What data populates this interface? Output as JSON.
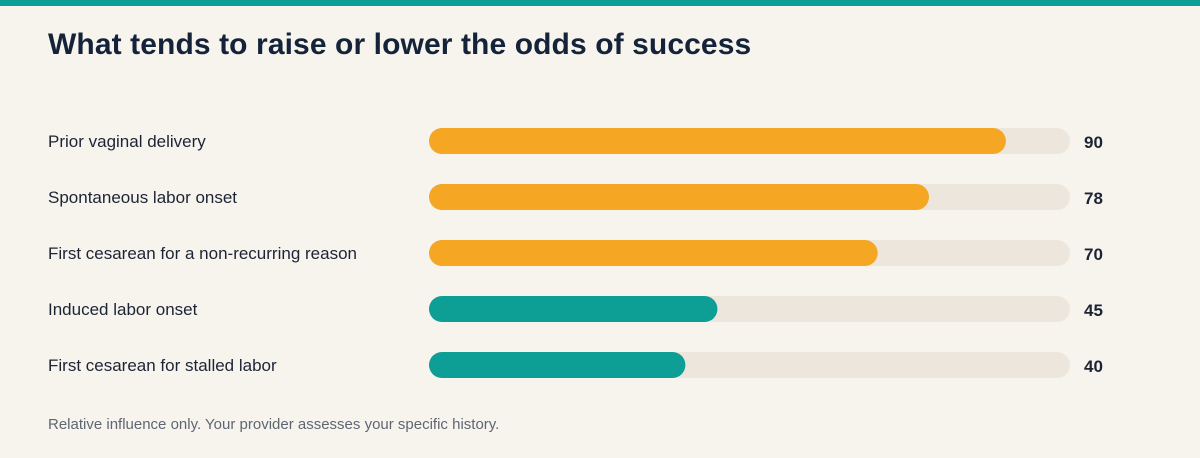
{
  "colors": {
    "background": "#f7f4ee",
    "stripe": "#0d9e95",
    "track": "#ede6dd",
    "raise": "#f5a623",
    "lower": "#0d9e95"
  },
  "title": "What tends to raise or lower the odds of success",
  "footnote": "Relative influence only. Your provider assesses your specific history.",
  "chart_data": {
    "type": "bar",
    "orientation": "horizontal",
    "title": "What tends to raise or lower the odds of success",
    "xlim": [
      0,
      100
    ],
    "grid": false,
    "categories": [
      "Prior vaginal delivery",
      "Spontaneous labor onset",
      "First cesarean for a non-recurring reason",
      "Induced labor onset",
      "First cesarean for stalled labor"
    ],
    "values": [
      90,
      78,
      70,
      45,
      40
    ],
    "bar_colors": [
      "#f5a623",
      "#f5a623",
      "#f5a623",
      "#0d9e95",
      "#0d9e95"
    ]
  }
}
